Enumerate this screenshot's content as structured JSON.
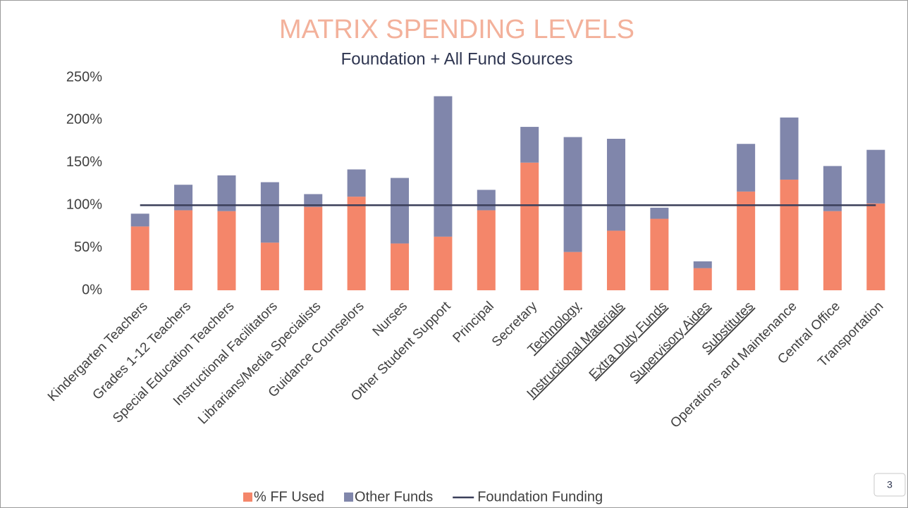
{
  "chart_data": {
    "type": "bar",
    "stacked": true,
    "title": "MATRIX SPENDING LEVELS",
    "subtitle": "Foundation + All Fund Sources",
    "categories": [
      "Kindergarten Teachers",
      "Grades 1-12 Teachers",
      "Special Education Teachers",
      "Instructional Facilitators",
      "Librarians/Media Specialists",
      "Guidance Counselors",
      "Nurses",
      "Other Student Support",
      "Principal",
      "Secretary",
      "Technology",
      "Instructional Materials",
      "Extra Duty Funds",
      "Supervisory Aides",
      "Substitutes",
      "Operations and Maintenance",
      "Central Office",
      "Transportation"
    ],
    "series": [
      {
        "name": "% FF Used",
        "type": "bar",
        "color": "#f4866a",
        "values": [
          75,
          94,
          93,
          56,
          98,
          110,
          55,
          63,
          94,
          150,
          45,
          70,
          84,
          26,
          116,
          130,
          93,
          102
        ]
      },
      {
        "name": "Other Funds",
        "type": "bar",
        "color": "#8086ab",
        "values": [
          15,
          30,
          42,
          71,
          15,
          32,
          77,
          165,
          24,
          42,
          135,
          108,
          13,
          8,
          56,
          73,
          53,
          63
        ]
      },
      {
        "name": "Foundation Funding",
        "type": "line",
        "color": "#3b3f5a",
        "values": [
          100,
          100,
          100,
          100,
          100,
          100,
          100,
          100,
          100,
          100,
          100,
          100,
          100,
          100,
          100,
          100,
          100,
          100
        ]
      }
    ],
    "ylim": [
      0,
      250
    ],
    "yticks": [
      {
        "value": 0,
        "label": "0%"
      },
      {
        "value": 50,
        "label": "50%"
      },
      {
        "value": 100,
        "label": "100%"
      },
      {
        "value": 150,
        "label": "150%"
      },
      {
        "value": 200,
        "label": "200%"
      },
      {
        "value": 250,
        "label": "250%"
      }
    ],
    "grid": false,
    "legend": "bottom"
  },
  "page_number": "3"
}
